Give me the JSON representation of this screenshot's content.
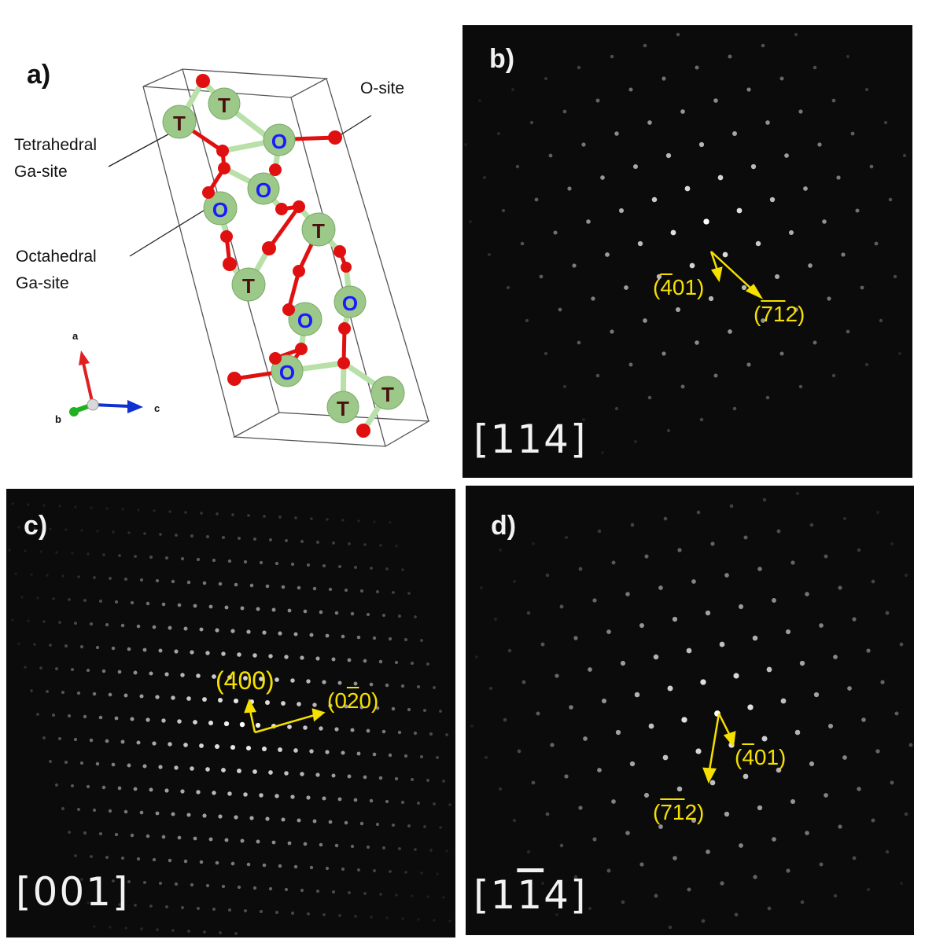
{
  "panel_a": {
    "label": "a)",
    "annotations": {
      "o_site": "O-site",
      "tetra_line1": "Tetrahedral",
      "tetra_line2": "Ga-site",
      "octa_line1": "Octahedral",
      "octa_line2": "Ga-site"
    },
    "atom_letters": {
      "tetrahedral": "T",
      "octahedral": "O"
    },
    "axes": {
      "a": "a",
      "b": "b",
      "c": "c"
    },
    "colors": {
      "ga": "#9cc98a",
      "o": "#e01010",
      "bond_ga": "#b8e0a8",
      "t_text": "#4a1010",
      "o_text": "#1a1aff",
      "axis_a": "#e02020",
      "axis_b": "#20b020",
      "axis_c": "#1030d0"
    }
  },
  "panel_b": {
    "label": "b)",
    "zone_axis": {
      "open": "[",
      "digits": "114",
      "close": "]"
    },
    "index_1": {
      "pre": "(",
      "bar": "4",
      "rest": "01)"
    },
    "index_2": {
      "pre": "(",
      "bar1": "7",
      "bar2": "1",
      "end": "2)"
    }
  },
  "panel_c": {
    "label": "c)",
    "zone_axis": {
      "open": "[",
      "digits": "001",
      "close": "]"
    },
    "index_1": "(400)",
    "index_2": {
      "pre": "(0",
      "bar": "2",
      "end": "0)"
    }
  },
  "panel_d": {
    "label": "d)",
    "zone_axis": {
      "open": "[",
      "d1": "1",
      "bar": "1",
      "d3": "4",
      "close": "]"
    },
    "index_1": {
      "pre": "(",
      "bar": "4",
      "rest": "01)"
    },
    "index_2": {
      "pre": "(",
      "bar1": "7",
      "bar2": "1",
      "end": "2)"
    }
  },
  "colors": {
    "annotation": "#f5e000",
    "pattern_bg": "#0b0b0b",
    "spot": "#ffffff"
  }
}
